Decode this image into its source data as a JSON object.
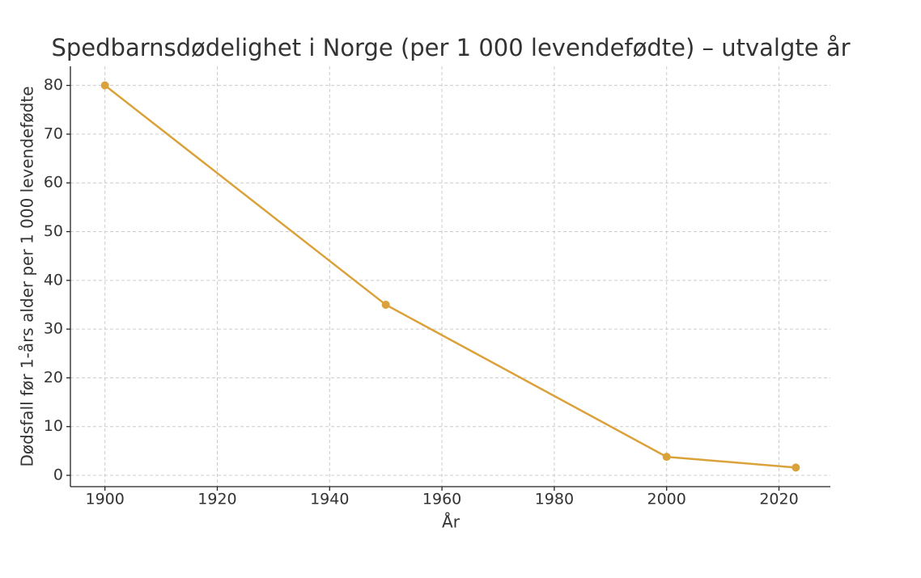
{
  "chart_data": {
    "type": "line",
    "title": "Spedbarnsdødelighet i Norge (per 1 000 levendefødte) – utvalgte år",
    "xlabel": "År",
    "ylabel": "Dødsfall før 1-års alder per 1 000 levendefødte",
    "x": [
      1900,
      1950,
      2000,
      2023
    ],
    "series": [
      {
        "name": "Spedbarnsdødelighet",
        "color": "#dba23b",
        "values": [
          80,
          35,
          3.8,
          1.6
        ]
      }
    ],
    "xlim": [
      1893.85,
      2029.15
    ],
    "xticks": [
      1900,
      1920,
      1940,
      1960,
      1980,
      2000,
      2020
    ],
    "ylim": [
      -2.32,
      83.92
    ],
    "yticks": [
      0,
      10,
      20,
      30,
      40,
      50,
      60,
      70,
      80
    ],
    "grid": true
  }
}
